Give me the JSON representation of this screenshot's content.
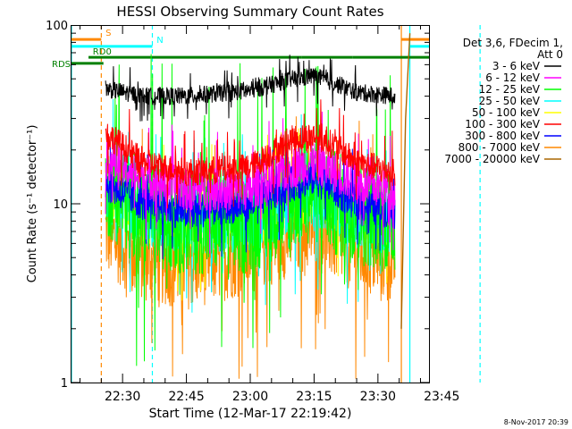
{
  "chart_data": {
    "type": "line",
    "title": "HESSI Observing Summary Count Rates",
    "ylabel": "Count Rate (s⁻¹ detector⁻¹)",
    "xlabel": "Start Time (12-Mar-17 22:19:42)",
    "footer": "8-Nov-2017 20:39",
    "y_scale": "log",
    "ylim": [
      1,
      100
    ],
    "xlim_minutes": [
      -12,
      72
    ],
    "y_ticks": [
      {
        "value": 1,
        "label": "1"
      },
      {
        "value": 10,
        "label": "10"
      },
      {
        "value": 100,
        "label": "100"
      }
    ],
    "x_ticks": [
      {
        "value": 0,
        "label": "22:30"
      },
      {
        "value": 15,
        "label": "22:45"
      },
      {
        "value": 30,
        "label": "23:00"
      },
      {
        "value": 45,
        "label": "23:15"
      },
      {
        "value": 60,
        "label": "23:30"
      },
      {
        "value": 75,
        "label": "23:45"
      }
    ],
    "legend": {
      "header": [
        "Det 3,6, FDecim 1,",
        "Att 0"
      ],
      "placement": "right"
    },
    "series": [
      {
        "name": "3 - 6 keV",
        "color": "#000000",
        "noise": 0.05,
        "values": [
          [
            -4,
            44
          ],
          [
            5,
            40
          ],
          [
            15,
            40
          ],
          [
            30,
            43
          ],
          [
            40,
            50
          ],
          [
            45,
            52
          ],
          [
            50,
            47
          ],
          [
            55,
            42
          ],
          [
            64,
            40
          ]
        ]
      },
      {
        "name": "6 - 12 keV",
        "color": "#ff00ff",
        "noise": 0.12,
        "values": [
          [
            -4,
            18
          ],
          [
            5,
            14
          ],
          [
            15,
            12
          ],
          [
            30,
            12
          ],
          [
            40,
            16
          ],
          [
            45,
            17
          ],
          [
            50,
            15
          ],
          [
            55,
            13
          ],
          [
            64,
            12
          ]
        ]
      },
      {
        "name": "12 - 25 keV",
        "color": "#00ff00",
        "noise": 0.3,
        "values": [
          [
            -4,
            13
          ],
          [
            5,
            9
          ],
          [
            15,
            8
          ],
          [
            30,
            8
          ],
          [
            40,
            11
          ],
          [
            45,
            12
          ],
          [
            50,
            10
          ],
          [
            55,
            9
          ],
          [
            64,
            8
          ]
        ]
      },
      {
        "name": "25 - 50 keV",
        "color": "#00ffff",
        "noise": 0.18,
        "values": [
          [
            -4,
            12
          ],
          [
            5,
            8.5
          ],
          [
            15,
            8
          ],
          [
            30,
            8
          ],
          [
            40,
            10
          ],
          [
            45,
            11
          ],
          [
            50,
            10
          ],
          [
            55,
            8.5
          ],
          [
            64,
            8
          ]
        ]
      },
      {
        "name": "50 - 100 keV",
        "color": "#ffff00",
        "noise": 0.15,
        "values": [
          [
            -4,
            12
          ],
          [
            5,
            8.5
          ],
          [
            15,
            8
          ],
          [
            30,
            8
          ],
          [
            40,
            10
          ],
          [
            45,
            11
          ],
          [
            50,
            10
          ],
          [
            55,
            8.5
          ],
          [
            64,
            8
          ]
        ]
      },
      {
        "name": "100 - 300 keV",
        "color": "#ff0000",
        "noise": 0.08,
        "values": [
          [
            -4,
            25
          ],
          [
            5,
            17
          ],
          [
            15,
            15
          ],
          [
            30,
            16
          ],
          [
            40,
            23
          ],
          [
            45,
            24
          ],
          [
            50,
            21
          ],
          [
            55,
            17
          ],
          [
            64,
            15
          ]
        ]
      },
      {
        "name": "300 - 800 keV",
        "color": "#0000ff",
        "noise": 0.1,
        "values": [
          [
            -4,
            13
          ],
          [
            5,
            10
          ],
          [
            15,
            9
          ],
          [
            30,
            10
          ],
          [
            40,
            13
          ],
          [
            45,
            14
          ],
          [
            50,
            12
          ],
          [
            55,
            10
          ],
          [
            64,
            9
          ]
        ]
      },
      {
        "name": "800 - 7000 keV",
        "color": "#ff8800",
        "noise": 0.25,
        "values": [
          [
            -4,
            7
          ],
          [
            5,
            5
          ],
          [
            15,
            4.5
          ],
          [
            30,
            5.5
          ],
          [
            40,
            7
          ],
          [
            45,
            7.5
          ],
          [
            50,
            6.5
          ],
          [
            55,
            5.5
          ],
          [
            64,
            5
          ]
        ]
      },
      {
        "name": "7000 - 20000 keV",
        "color": "#aa6600",
        "noise": 0.0,
        "values": [
          [
            65.5,
            2
          ],
          [
            66.5,
            30
          ],
          [
            67.5,
            90
          ]
        ]
      }
    ],
    "state_bars": [
      {
        "label": "S",
        "color": "#ff8800",
        "value": 83,
        "segments": [
          [
            -12,
            -5
          ],
          [
            65.5,
            84
          ]
        ]
      },
      {
        "label": "N",
        "color": "#00ffff",
        "value": 76,
        "segments": [
          [
            -12,
            7
          ],
          [
            67.5,
            84
          ]
        ]
      },
      {
        "label": "RD0",
        "color": "#008000",
        "value": 66,
        "segments": [
          [
            -8,
            7
          ],
          [
            7,
            42
          ],
          [
            42,
            54
          ],
          [
            54,
            84
          ]
        ]
      },
      {
        "label": "RDS",
        "color": "#008000",
        "value": 61,
        "segments": [
          [
            -12,
            -4.5
          ]
        ]
      }
    ],
    "vertical_markers": [
      {
        "x": -12,
        "color": "#00ffff",
        "style": "solid"
      },
      {
        "x": -5,
        "color": "#ff8800",
        "style": "dashed"
      },
      {
        "x": 7,
        "color": "#00ffff",
        "style": "dashed"
      },
      {
        "x": 65.5,
        "color": "#ff8800",
        "style": "solid"
      },
      {
        "x": 67.5,
        "color": "#00ffff",
        "style": "solid"
      },
      {
        "x": 84,
        "color": "#00ffff",
        "style": "dashed"
      }
    ]
  }
}
